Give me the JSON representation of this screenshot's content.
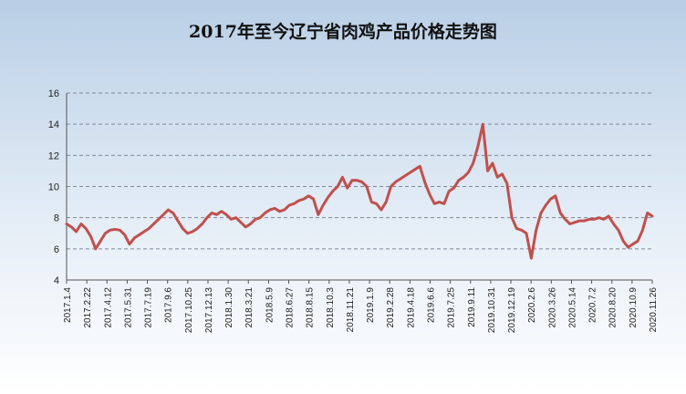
{
  "chart_data": {
    "type": "line",
    "title": "2017年至今辽宁省肉鸡产品价格走势图",
    "xlabel": "",
    "ylabel": "",
    "ylim": [
      4,
      16
    ],
    "yticks": [
      4,
      6,
      8,
      10,
      12,
      14,
      16
    ],
    "grid": true,
    "legend": "none",
    "line_color": "#c0504d",
    "x_tick_labels": [
      "2017.1.4",
      "2017.2.22",
      "2017.4.12",
      "2017.5.31",
      "2017.7.19",
      "2017.9.6",
      "2017.10.25",
      "2017.12.13",
      "2018.1.30",
      "2018.3.21",
      "2018.5.9",
      "2018.6.27",
      "2018.8.15",
      "2018.10.3",
      "2018.11.21",
      "2019.1.9",
      "2019.2.28",
      "2019.4.18",
      "2019.6.6",
      "2019.7.25",
      "2019.9.11",
      "2019.10.31",
      "2019.12.19",
      "2020.2.6",
      "2020.3.26",
      "2020.5.14",
      "2020.7.2",
      "2020.8.20",
      "2020.10.9",
      "2020.11.26"
    ],
    "series": [
      {
        "values": [
          7.6,
          7.4,
          7.1,
          7.6,
          7.3,
          6.8,
          6.0,
          6.5,
          7.0,
          7.2,
          7.25,
          7.2,
          6.9,
          6.3,
          6.7,
          6.9,
          7.1,
          7.3,
          7.6,
          7.9,
          8.2,
          8.5,
          8.3,
          7.8,
          7.3,
          7.0,
          7.1,
          7.3,
          7.6,
          8.0,
          8.3,
          8.2,
          8.4,
          8.2,
          7.9,
          8.0,
          7.7,
          7.4,
          7.6,
          7.9,
          8.0,
          8.3,
          8.5,
          8.6,
          8.4,
          8.5,
          8.8,
          8.9,
          9.1,
          9.2,
          9.4,
          9.2,
          8.2,
          8.8,
          9.3,
          9.7,
          10.0,
          10.6,
          9.9,
          10.4,
          10.4,
          10.3,
          10.0,
          9.0,
          8.9,
          8.5,
          9.0,
          10.0,
          10.3,
          10.5,
          10.7,
          10.9,
          11.1,
          11.3,
          10.3,
          9.5,
          8.9,
          9.0,
          8.9,
          9.7,
          9.9,
          10.4,
          10.6,
          10.9,
          11.5,
          12.6,
          14.0,
          11.0,
          11.5,
          10.6,
          10.8,
          10.2,
          8.0,
          7.3,
          7.2,
          7.0,
          5.4,
          7.2,
          8.3,
          8.8,
          9.2,
          9.4,
          8.3,
          7.9,
          7.6,
          7.7,
          7.8,
          7.8,
          7.9,
          7.9,
          8.0,
          7.9,
          8.1,
          7.6,
          7.2,
          6.5,
          6.1,
          6.3,
          6.5,
          7.2,
          8.3,
          8.1
        ]
      }
    ]
  }
}
